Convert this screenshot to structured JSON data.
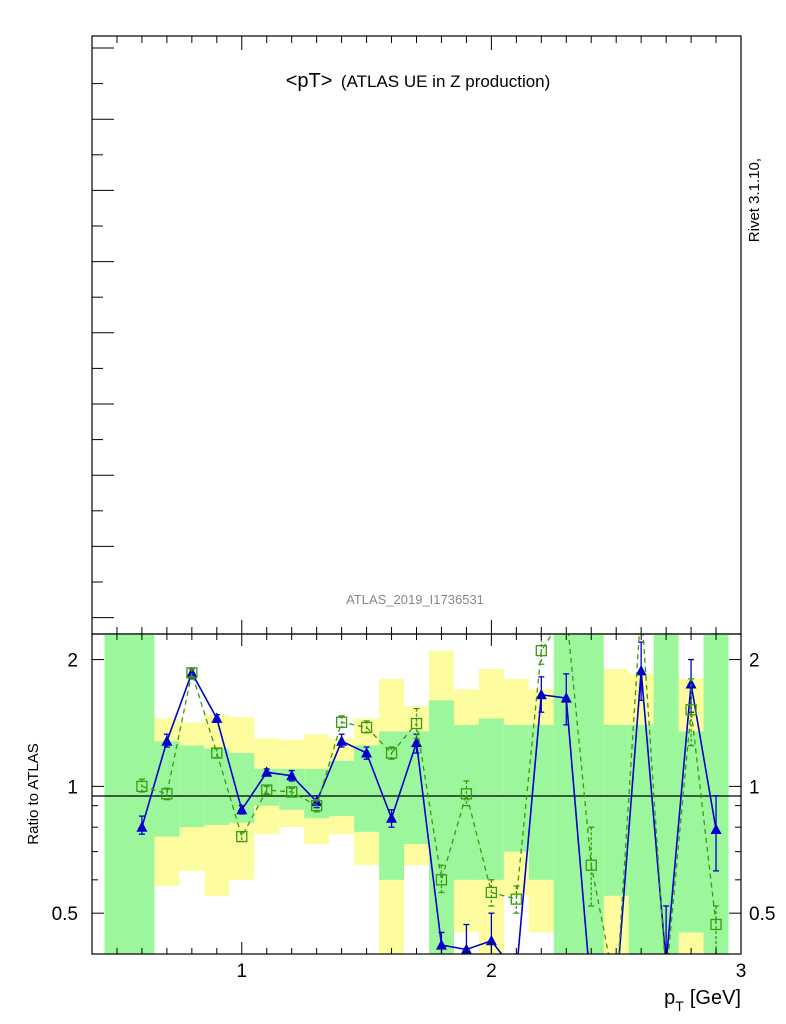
{
  "colors": {
    "band_1sigma": "#9cf79c",
    "band_2sigma": "#fdfd9f",
    "series_blue": "#0000cc",
    "series_green": "#3a9a10",
    "frame": "#000000",
    "label_grey": "#888888"
  },
  "main_panel": {
    "title_prefix": "<pT>",
    "title_suffix": "(ATLAS UE in Z production)",
    "analysis_label": "ATLAS_2019_I1736531",
    "side_label": "Rivet 3.1.10,"
  },
  "chart_data": {
    "type": "line",
    "ylabel": "Ratio to ATLAS",
    "xlabel_main": "p",
    "xlabel_sub": "T",
    "xlabel_unit": "[GeV]",
    "ylog": true,
    "xlim": [
      0.4,
      3.0
    ],
    "ylim": [
      0.4,
      2.3
    ],
    "x_ticks": [
      {
        "value": 1,
        "label": "1"
      },
      {
        "value": 2,
        "label": "2"
      },
      {
        "value": 3,
        "label": "3"
      }
    ],
    "y_ticks": [
      {
        "value": 0.5,
        "label": "0.5"
      },
      {
        "value": 1,
        "label": "1"
      },
      {
        "value": 2,
        "label": "2"
      }
    ],
    "reference_line": 1,
    "bands": [
      {
        "x0": 0.45,
        "x1": 0.55,
        "g": [
          0.3,
          3.0
        ],
        "y": [
          0.3,
          3.0
        ]
      },
      {
        "x0": 0.55,
        "x1": 0.65,
        "g": [
          0.3,
          3.0
        ],
        "y": [
          0.3,
          3.0
        ]
      },
      {
        "x0": 0.65,
        "x1": 0.75,
        "g": [
          0.76,
          1.28
        ],
        "y": [
          0.58,
          1.45
        ]
      },
      {
        "x0": 0.75,
        "x1": 0.85,
        "g": [
          0.8,
          1.25
        ],
        "y": [
          0.63,
          1.42
        ]
      },
      {
        "x0": 0.85,
        "x1": 0.95,
        "g": [
          0.81,
          1.23
        ],
        "y": [
          0.55,
          1.48
        ]
      },
      {
        "x0": 0.95,
        "x1": 1.05,
        "g": [
          0.82,
          1.2
        ],
        "y": [
          0.6,
          1.46
        ]
      },
      {
        "x0": 1.05,
        "x1": 1.15,
        "g": [
          0.9,
          1.1
        ],
        "y": [
          0.77,
          1.3
        ]
      },
      {
        "x0": 1.15,
        "x1": 1.25,
        "g": [
          0.88,
          1.1
        ],
        "y": [
          0.8,
          1.29
        ]
      },
      {
        "x0": 1.25,
        "x1": 1.35,
        "g": [
          0.84,
          1.1
        ],
        "y": [
          0.73,
          1.33
        ]
      },
      {
        "x0": 1.35,
        "x1": 1.45,
        "g": [
          0.85,
          1.15
        ],
        "y": [
          0.77,
          1.3
        ]
      },
      {
        "x0": 1.45,
        "x1": 1.55,
        "g": [
          0.78,
          1.25
        ],
        "y": [
          0.65,
          1.45
        ]
      },
      {
        "x0": 1.55,
        "x1": 1.65,
        "g": [
          0.6,
          1.35
        ],
        "y": [
          0.3,
          1.8
        ]
      },
      {
        "x0": 1.65,
        "x1": 1.75,
        "g": [
          0.73,
          1.35
        ],
        "y": [
          0.65,
          1.55
        ]
      },
      {
        "x0": 1.75,
        "x1": 1.85,
        "g": [
          0.3,
          1.6
        ],
        "y": [
          0.3,
          2.1
        ]
      },
      {
        "x0": 1.85,
        "x1": 1.95,
        "g": [
          0.6,
          1.4
        ],
        "y": [
          0.45,
          1.7
        ]
      },
      {
        "x0": 1.95,
        "x1": 2.05,
        "g": [
          0.6,
          1.45
        ],
        "y": [
          0.4,
          1.9
        ]
      },
      {
        "x0": 2.05,
        "x1": 2.15,
        "g": [
          0.7,
          1.4
        ],
        "y": [
          0.55,
          1.8
        ]
      },
      {
        "x0": 2.15,
        "x1": 2.25,
        "g": [
          0.6,
          1.4
        ],
        "y": [
          0.45,
          1.7
        ]
      },
      {
        "x0": 2.25,
        "x1": 2.35,
        "g": [
          0.3,
          3.0
        ],
        "y": [
          0.3,
          3.0
        ]
      },
      {
        "x0": 2.35,
        "x1": 2.45,
        "g": [
          0.3,
          3.0
        ],
        "y": [
          0.3,
          3.0
        ]
      },
      {
        "x0": 2.45,
        "x1": 2.55,
        "g": [
          0.55,
          1.4
        ],
        "y": [
          0.3,
          1.9
        ]
      },
      {
        "x0": 2.55,
        "x1": 2.65,
        "g": [
          0.4,
          1.4
        ],
        "y": [
          0.3,
          1.85
        ]
      },
      {
        "x0": 2.65,
        "x1": 2.75,
        "g": [
          0.3,
          3.0
        ],
        "y": [
          0.3,
          3.0
        ]
      },
      {
        "x0": 2.75,
        "x1": 2.85,
        "g": [
          0.45,
          1.35
        ],
        "y": [
          0.3,
          1.8
        ]
      },
      {
        "x0": 2.85,
        "x1": 2.95,
        "g": [
          0.3,
          3.0
        ],
        "y": [
          0.3,
          3.0
        ]
      }
    ],
    "series": [
      {
        "color_key": "series_blue",
        "marker": "triangle",
        "line": "solid",
        "points": [
          {
            "x": 0.6,
            "y": 0.8,
            "lo": 0.77,
            "hi": 0.85
          },
          {
            "x": 0.7,
            "y": 1.28,
            "lo": 1.24,
            "hi": 1.33
          },
          {
            "x": 0.8,
            "y": 1.86,
            "lo": 1.8,
            "hi": 1.9
          },
          {
            "x": 0.9,
            "y": 1.45,
            "lo": 1.42,
            "hi": 1.48
          },
          {
            "x": 1.0,
            "y": 0.88,
            "lo": 0.86,
            "hi": 0.9
          },
          {
            "x": 1.1,
            "y": 1.08,
            "lo": 1.06,
            "hi": 1.1
          },
          {
            "x": 1.2,
            "y": 1.06,
            "lo": 1.03,
            "hi": 1.09
          },
          {
            "x": 1.3,
            "y": 0.92,
            "lo": 0.89,
            "hi": 0.95
          },
          {
            "x": 1.4,
            "y": 1.28,
            "lo": 1.24,
            "hi": 1.33
          },
          {
            "x": 1.5,
            "y": 1.2,
            "lo": 1.16,
            "hi": 1.24
          },
          {
            "x": 1.6,
            "y": 0.84,
            "lo": 0.8,
            "hi": 0.88
          },
          {
            "x": 1.7,
            "y": 1.27,
            "lo": 1.2,
            "hi": 1.33
          },
          {
            "x": 1.8,
            "y": 0.42,
            "lo": 0.4,
            "hi": 0.45
          },
          {
            "x": 1.9,
            "y": 0.41,
            "lo": 0.38,
            "hi": 0.47
          },
          {
            "x": 2.0,
            "y": 0.43,
            "lo": 0.38,
            "hi": 0.5
          },
          {
            "x": 2.1,
            "y": 0.36,
            "lo": 0.32,
            "hi": 0.4
          },
          {
            "x": 2.2,
            "y": 1.65,
            "lo": 1.5,
            "hi": 1.82
          },
          {
            "x": 2.3,
            "y": 1.62,
            "lo": 1.4,
            "hi": 1.85
          },
          {
            "x": 2.4,
            "y": 0.3,
            "lo": 0.26,
            "hi": 0.34
          },
          {
            "x": 2.5,
            "y": 0.3,
            "lo": 0.26,
            "hi": 0.34
          },
          {
            "x": 2.6,
            "y": 1.88,
            "lo": 1.6,
            "hi": 2.2
          },
          {
            "x": 2.7,
            "y": 0.38,
            "lo": 0.33,
            "hi": 0.52
          },
          {
            "x": 2.8,
            "y": 1.75,
            "lo": 1.5,
            "hi": 2.0
          },
          {
            "x": 2.9,
            "y": 0.79,
            "lo": 0.63,
            "hi": 0.95
          }
        ]
      },
      {
        "color_key": "series_green",
        "marker": "open-square",
        "line": "dashed",
        "points": [
          {
            "x": 0.6,
            "y": 1.0,
            "lo": 0.97,
            "hi": 1.04
          },
          {
            "x": 0.7,
            "y": 0.96,
            "lo": 0.93,
            "hi": 0.99
          },
          {
            "x": 0.8,
            "y": 1.86,
            "lo": 1.82,
            "hi": 1.9
          },
          {
            "x": 0.9,
            "y": 1.2,
            "lo": 1.17,
            "hi": 1.23
          },
          {
            "x": 1.0,
            "y": 0.76,
            "lo": 0.74,
            "hi": 0.78
          },
          {
            "x": 1.1,
            "y": 0.98,
            "lo": 0.96,
            "hi": 1.0
          },
          {
            "x": 1.2,
            "y": 0.97,
            "lo": 0.95,
            "hi": 0.99
          },
          {
            "x": 1.3,
            "y": 0.9,
            "lo": 0.87,
            "hi": 0.93
          },
          {
            "x": 1.4,
            "y": 1.42,
            "lo": 1.38,
            "hi": 1.47
          },
          {
            "x": 1.5,
            "y": 1.38,
            "lo": 1.34,
            "hi": 1.43
          },
          {
            "x": 1.6,
            "y": 1.2,
            "lo": 1.16,
            "hi": 1.24
          },
          {
            "x": 1.7,
            "y": 1.41,
            "lo": 1.3,
            "hi": 1.53
          },
          {
            "x": 1.8,
            "y": 0.6,
            "lo": 0.56,
            "hi": 0.65
          },
          {
            "x": 1.9,
            "y": 0.96,
            "lo": 0.9,
            "hi": 1.03
          },
          {
            "x": 2.0,
            "y": 0.56,
            "lo": 0.52,
            "hi": 0.6
          },
          {
            "x": 2.1,
            "y": 0.54,
            "lo": 0.5,
            "hi": 0.58
          },
          {
            "x": 2.2,
            "y": 2.1,
            "lo": 1.95,
            "hi": 2.3
          },
          {
            "x": 2.3,
            "y": 2.6,
            "lo": 2.3,
            "hi": 2.9
          },
          {
            "x": 2.4,
            "y": 0.65,
            "lo": 0.52,
            "hi": 0.8
          },
          {
            "x": 2.5,
            "y": 0.25,
            "lo": 0.2,
            "hi": 0.3
          },
          {
            "x": 2.6,
            "y": 2.7,
            "lo": 2.3,
            "hi": 3.0
          },
          {
            "x": 2.7,
            "y": 0.35,
            "lo": 0.3,
            "hi": 0.4
          },
          {
            "x": 2.8,
            "y": 1.52,
            "lo": 1.25,
            "hi": 1.8
          },
          {
            "x": 2.9,
            "y": 0.47,
            "lo": 0.4,
            "hi": 0.52
          }
        ]
      }
    ]
  }
}
